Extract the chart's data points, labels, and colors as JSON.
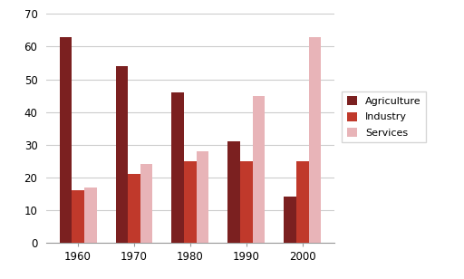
{
  "years": [
    "1960",
    "1970",
    "1980",
    "1990",
    "2000"
  ],
  "agriculture": [
    63,
    54,
    46,
    31,
    14
  ],
  "industry": [
    16,
    21,
    25,
    25,
    25
  ],
  "services": [
    17,
    24,
    28,
    45,
    63
  ],
  "agriculture_color": "#7b2020",
  "industry_color": "#c0392b",
  "services_color": "#e8b4b8",
  "legend_labels": [
    "Agriculture",
    "Industry",
    "Services"
  ],
  "ylim": [
    0,
    70
  ],
  "yticks": [
    0,
    10,
    20,
    30,
    40,
    50,
    60,
    70
  ],
  "bar_width": 0.22,
  "background_color": "#ffffff",
  "grid_color": "#cccccc",
  "figsize": [
    5.12,
    3.08
  ],
  "dpi": 100
}
